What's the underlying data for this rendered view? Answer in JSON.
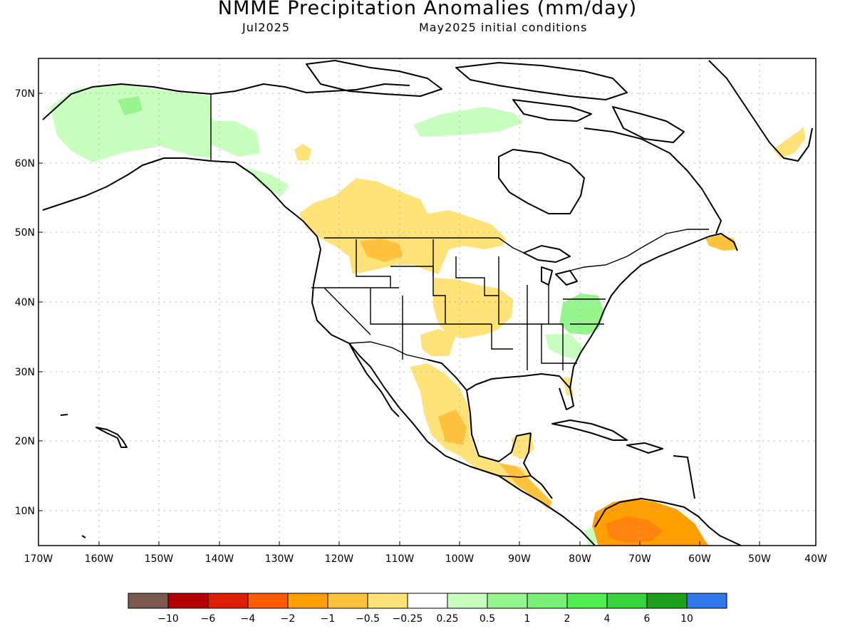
{
  "title": "NMME Precipitation Anomalies (mm/day)",
  "target_month": "Jul2025",
  "initial_conditions": "May2025 initial conditions",
  "latitude_labels": [
    "70N",
    "60N",
    "50N",
    "40N",
    "30N",
    "20N",
    "10N"
  ],
  "longitude_labels": [
    "170W",
    "160W",
    "150W",
    "140W",
    "130W",
    "120W",
    "110W",
    "100W",
    "90W",
    "80W",
    "70W",
    "60W",
    "50W",
    "40W"
  ],
  "colorbar": {
    "colors": [
      "#7a5a4f",
      "#b40000",
      "#dc1f00",
      "#ff5a00",
      "#ffa000",
      "#ffc23c",
      "#ffe278",
      "#ffffff",
      "#c8ffbe",
      "#96f58c",
      "#78f078",
      "#50ee50",
      "#37d23c",
      "#1ea01e",
      "#2f78ec"
    ],
    "labels": [
      "−10",
      "−6",
      "−4",
      "−2",
      "−1",
      "−0.5",
      "−0.25",
      "0.25",
      "0.5",
      "1",
      "2",
      "4",
      "6",
      "10"
    ]
  }
}
